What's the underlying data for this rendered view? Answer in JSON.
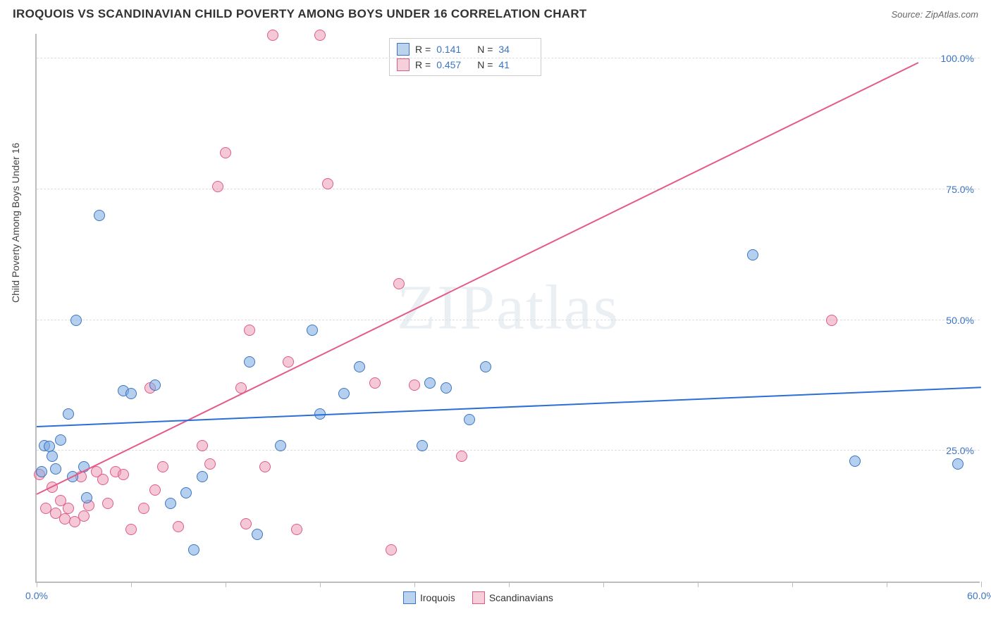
{
  "header": {
    "title": "IROQUOIS VS SCANDINAVIAN CHILD POVERTY AMONG BOYS UNDER 16 CORRELATION CHART",
    "source_label": "Source: ZipAtlas.com"
  },
  "axes": {
    "y_label": "Child Poverty Among Boys Under 16",
    "x_min": 0.0,
    "x_max": 60.0,
    "y_min": 0.0,
    "y_max": 105.0,
    "y_gridlines": [
      25.0,
      50.0,
      75.0,
      100.0
    ],
    "y_tick_labels": [
      "25.0%",
      "50.0%",
      "75.0%",
      "100.0%"
    ],
    "x_ticks": [
      0.0,
      6.0,
      12.0,
      18.0,
      24.0,
      30.0,
      36.0,
      42.0,
      48.0,
      54.0,
      60.0
    ],
    "x_tick_labels_left": "0.0%",
    "x_tick_labels_right": "60.0%",
    "grid_color": "#dddddd",
    "axis_label_color": "#3b74c4"
  },
  "watermark": {
    "text_a": "ZIP",
    "text_b": "atlas"
  },
  "stats": {
    "rows": [
      {
        "swatch_fill": "#bcd3ee",
        "swatch_border": "#3b74c4",
        "r_label": "R =",
        "r_value": "0.141",
        "n_label": "N =",
        "n_value": "34"
      },
      {
        "swatch_fill": "#f5cfd9",
        "swatch_border": "#e05b84",
        "r_label": "R =",
        "r_value": "0.457",
        "n_label": "N =",
        "n_value": "41"
      }
    ]
  },
  "legend": {
    "items": [
      {
        "fill": "#bcd3ee",
        "border": "#3b74c4",
        "label": "Iroquois"
      },
      {
        "fill": "#f5cfd9",
        "border": "#e05b84",
        "label": "Scandinavians"
      }
    ]
  },
  "series": {
    "iroquois": {
      "color_fill": "rgba(120,170,225,0.55)",
      "color_border": "#3b74c4",
      "marker_radius": 8,
      "trend": {
        "x1": 0,
        "y1": 29.5,
        "x2": 60,
        "y2": 37.0,
        "color": "#2a6fd6",
        "width": 2
      },
      "points": [
        [
          0.3,
          21.0
        ],
        [
          0.5,
          26.0
        ],
        [
          0.8,
          25.8
        ],
        [
          1.0,
          24.0
        ],
        [
          1.2,
          21.5
        ],
        [
          1.5,
          27.0
        ],
        [
          2.0,
          32.0
        ],
        [
          2.3,
          20.0
        ],
        [
          2.5,
          50.0
        ],
        [
          3.0,
          22.0
        ],
        [
          3.2,
          16.0
        ],
        [
          4.0,
          70.0
        ],
        [
          5.5,
          36.5
        ],
        [
          6.0,
          36.0
        ],
        [
          7.5,
          37.5
        ],
        [
          8.5,
          15.0
        ],
        [
          9.5,
          17.0
        ],
        [
          10.0,
          6.0
        ],
        [
          10.5,
          20.0
        ],
        [
          13.5,
          42.0
        ],
        [
          14.0,
          9.0
        ],
        [
          15.5,
          26.0
        ],
        [
          17.5,
          48.0
        ],
        [
          18.0,
          32.0
        ],
        [
          19.5,
          36.0
        ],
        [
          20.5,
          41.0
        ],
        [
          24.5,
          26.0
        ],
        [
          25.0,
          38.0
        ],
        [
          26.0,
          37.0
        ],
        [
          27.5,
          31.0
        ],
        [
          28.5,
          41.0
        ],
        [
          45.5,
          62.5
        ],
        [
          52.0,
          23.0
        ],
        [
          58.5,
          22.5
        ]
      ]
    },
    "scandinavians": {
      "color_fill": "rgba(235,145,175,0.50)",
      "color_border": "#e05b84",
      "marker_radius": 8,
      "trend": {
        "x1": 0,
        "y1": 16.5,
        "x2": 56,
        "y2": 99.0,
        "color": "#e65a8a",
        "width": 2
      },
      "points": [
        [
          0.2,
          20.5
        ],
        [
          0.6,
          14.0
        ],
        [
          1.0,
          18.0
        ],
        [
          1.2,
          13.0
        ],
        [
          1.5,
          15.5
        ],
        [
          1.8,
          12.0
        ],
        [
          2.0,
          14.0
        ],
        [
          2.4,
          11.5
        ],
        [
          2.8,
          20.0
        ],
        [
          3.0,
          12.5
        ],
        [
          3.3,
          14.5
        ],
        [
          3.8,
          21.0
        ],
        [
          4.2,
          19.5
        ],
        [
          4.5,
          15.0
        ],
        [
          5.0,
          21.0
        ],
        [
          5.5,
          20.5
        ],
        [
          6.0,
          10.0
        ],
        [
          6.8,
          14.0
        ],
        [
          7.2,
          37.0
        ],
        [
          7.5,
          17.5
        ],
        [
          8.0,
          22.0
        ],
        [
          9.0,
          10.5
        ],
        [
          10.5,
          26.0
        ],
        [
          11.0,
          22.5
        ],
        [
          11.5,
          75.5
        ],
        [
          12.0,
          82.0
        ],
        [
          13.0,
          37.0
        ],
        [
          13.3,
          11.0
        ],
        [
          13.5,
          48.0
        ],
        [
          14.5,
          22.0
        ],
        [
          15.0,
          104.5
        ],
        [
          16.0,
          42.0
        ],
        [
          16.5,
          10.0
        ],
        [
          18.0,
          104.5
        ],
        [
          18.5,
          76.0
        ],
        [
          21.5,
          38.0
        ],
        [
          22.5,
          6.0
        ],
        [
          23.0,
          57.0
        ],
        [
          24.0,
          37.5
        ],
        [
          27.0,
          24.0
        ],
        [
          50.5,
          50.0
        ]
      ]
    }
  }
}
